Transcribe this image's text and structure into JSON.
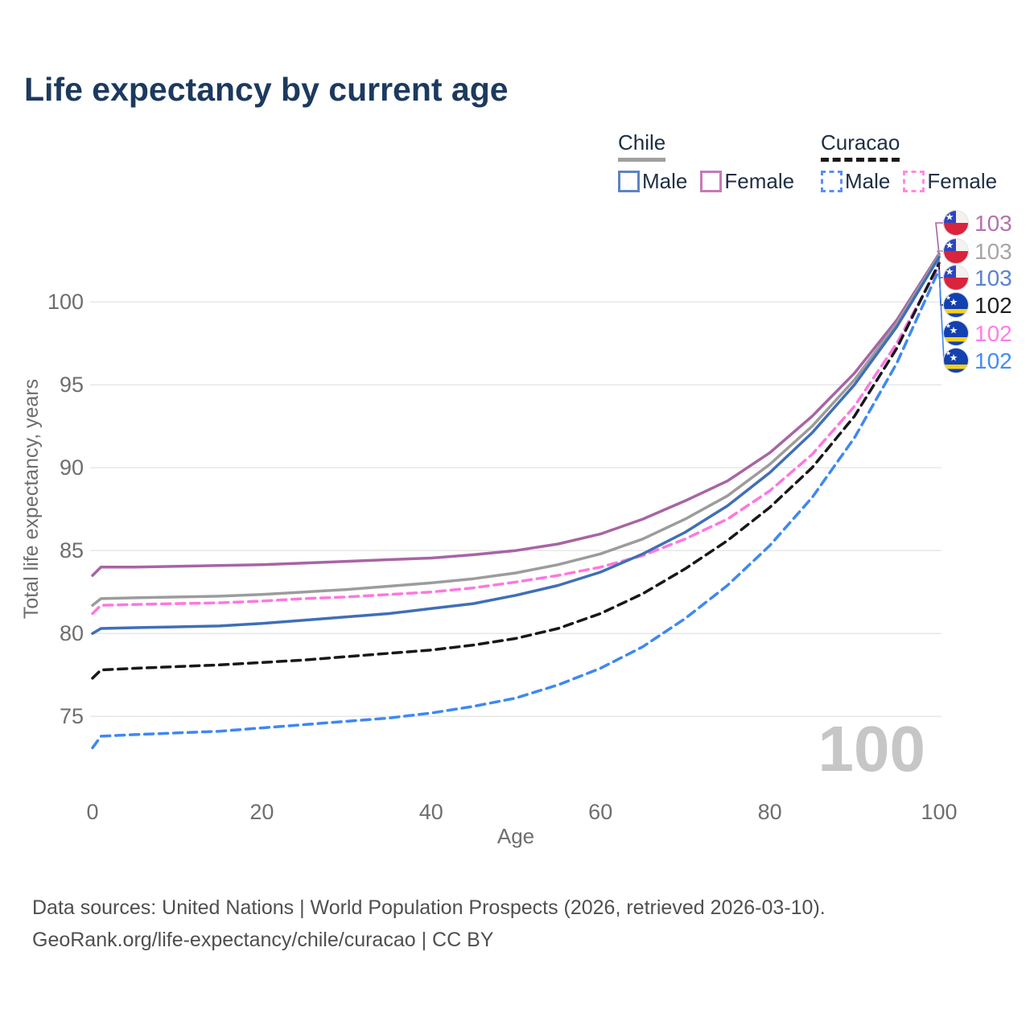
{
  "title": "Life expectancy by current age",
  "legend": {
    "groups": [
      {
        "country": "Chile",
        "underline_style": "solid",
        "underline_color": "#a0a0a0",
        "items": [
          {
            "label": "Male",
            "color": "#5d83c4",
            "dashed": false
          },
          {
            "label": "Female",
            "color": "#c47ab8",
            "dashed": false
          }
        ]
      },
      {
        "country": "Curacao",
        "underline_style": "dashed",
        "underline_color": "#1a1a1a",
        "items": [
          {
            "label": "Male",
            "color": "#5a8ff0",
            "dashed": true
          },
          {
            "label": "Female",
            "color": "#ff8ae0",
            "dashed": true
          }
        ]
      }
    ]
  },
  "chart_data": {
    "type": "line",
    "title": "Life expectancy by current age",
    "xlabel": "Age",
    "ylabel": "Total life expectancy, years",
    "xticks": [
      0,
      20,
      40,
      60,
      80,
      100
    ],
    "yticks": [
      75,
      80,
      85,
      90,
      95,
      100
    ],
    "xlim": [
      0,
      100
    ],
    "ylim": [
      72,
      104
    ],
    "grid": "horizontal-only",
    "legend_position": "top-right",
    "watermark": "100",
    "x": [
      0,
      1,
      5,
      10,
      15,
      20,
      25,
      30,
      35,
      40,
      45,
      50,
      55,
      60,
      65,
      70,
      75,
      80,
      85,
      90,
      95,
      100
    ],
    "series": [
      {
        "name": "Chile — Female",
        "country": "Chile",
        "sex": "Female",
        "flag": "chile",
        "row": 0,
        "color": "#a864a4",
        "dashed": false,
        "end_label": "103",
        "label_color": "#b273ae",
        "values": [
          83.5,
          84.0,
          84.0,
          84.05,
          84.1,
          84.15,
          84.25,
          84.35,
          84.45,
          84.55,
          84.75,
          85.0,
          85.4,
          86.0,
          86.9,
          88.0,
          89.2,
          90.9,
          93.1,
          95.7,
          98.9,
          102.9
        ]
      },
      {
        "name": "Chile — All",
        "country": "Chile",
        "sex": "All",
        "flag": "chile",
        "row": 1,
        "color": "#9c9c9c",
        "dashed": false,
        "end_label": "103",
        "label_color": "#a6a6a6",
        "values": [
          81.7,
          82.1,
          82.15,
          82.2,
          82.25,
          82.35,
          82.5,
          82.65,
          82.85,
          83.05,
          83.3,
          83.65,
          84.15,
          84.8,
          85.7,
          86.9,
          88.3,
          90.2,
          92.5,
          95.3,
          98.7,
          102.8
        ]
      },
      {
        "name": "Curacao — Female",
        "country": "Curacao",
        "sex": "Female",
        "flag": "curacao",
        "row": 4,
        "color": "#ff77de",
        "dashed": true,
        "end_label": "102",
        "label_color": "#ff7ee6",
        "values": [
          81.2,
          81.7,
          81.75,
          81.8,
          81.85,
          81.95,
          82.1,
          82.2,
          82.35,
          82.5,
          82.75,
          83.1,
          83.5,
          84.0,
          84.7,
          85.7,
          86.9,
          88.6,
          90.8,
          93.7,
          97.5,
          102.2
        ]
      },
      {
        "name": "Chile — Male",
        "country": "Chile",
        "sex": "Male",
        "flag": "chile",
        "row": 2,
        "color": "#3f6fb7",
        "dashed": false,
        "end_label": "103",
        "label_color": "#5b82cd",
        "values": [
          80.0,
          80.3,
          80.35,
          80.4,
          80.45,
          80.6,
          80.8,
          81.0,
          81.2,
          81.5,
          81.8,
          82.3,
          82.9,
          83.7,
          84.8,
          86.1,
          87.7,
          89.7,
          92.1,
          95.0,
          98.5,
          102.7
        ]
      },
      {
        "name": "Curacao — All",
        "country": "Curacao",
        "sex": "All",
        "flag": "curacao",
        "row": 3,
        "color": "#181818",
        "dashed": true,
        "end_label": "102",
        "label_color": "#1f1f1f",
        "values": [
          77.3,
          77.8,
          77.9,
          78.0,
          78.1,
          78.25,
          78.4,
          78.6,
          78.8,
          79.0,
          79.3,
          79.7,
          80.3,
          81.2,
          82.4,
          83.9,
          85.6,
          87.6,
          90.0,
          93.1,
          97.2,
          102.35
        ]
      },
      {
        "name": "Curacao — Male",
        "country": "Curacao",
        "sex": "Male",
        "flag": "curacao",
        "row": 5,
        "color": "#3e88f3",
        "dashed": true,
        "end_label": "102",
        "label_color": "#428cf4",
        "values": [
          73.1,
          73.8,
          73.9,
          74.0,
          74.1,
          74.3,
          74.5,
          74.7,
          74.9,
          75.2,
          75.6,
          76.1,
          76.9,
          77.9,
          79.2,
          80.9,
          82.9,
          85.3,
          88.2,
          91.8,
          96.3,
          101.95
        ]
      }
    ]
  },
  "footer": {
    "line1": "Data sources: United Nations | World Population Prospects (2026, retrieved 2026-03-10).",
    "line2": "GeoRank.org/life-expectancy/chile/curacao | CC BY"
  },
  "colors": {
    "title": "#1c3a5e",
    "axis_text": "#6e6e6e",
    "gridline": "#e7e7e7",
    "watermark": "#c6c6c6",
    "footer_text": "#4f4f4f"
  }
}
